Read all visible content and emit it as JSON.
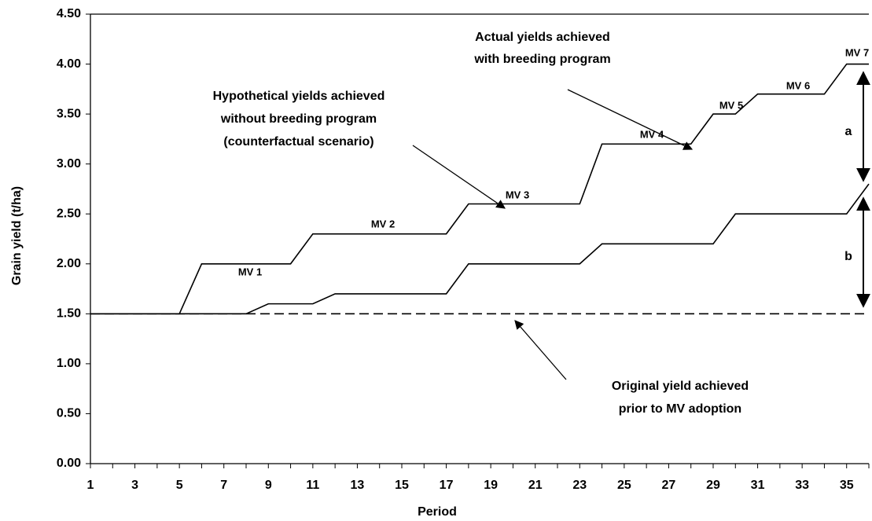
{
  "chart_data": {
    "type": "line",
    "y_label": "Grain yield (t/ha)",
    "x_label": "Period",
    "x": [
      1,
      2,
      3,
      4,
      5,
      6,
      7,
      8,
      9,
      10,
      11,
      12,
      13,
      14,
      15,
      16,
      17,
      18,
      19,
      20,
      21,
      22,
      23,
      24,
      25,
      26,
      27,
      28,
      29,
      30,
      31,
      32,
      33,
      34,
      35,
      36
    ],
    "series": [
      {
        "color": "#000000",
        "dash": false,
        "values": [
          1.5,
          1.5,
          1.5,
          1.5,
          1.5,
          2.0,
          2.0,
          2.0,
          2.0,
          2.0,
          2.3,
          2.3,
          2.3,
          2.3,
          2.3,
          2.3,
          2.3,
          2.6,
          2.6,
          2.6,
          2.6,
          2.6,
          2.6,
          3.2,
          3.2,
          3.2,
          3.2,
          3.2,
          3.5,
          3.5,
          3.7,
          3.7,
          3.7,
          3.7,
          4.0,
          4.0
        ]
      },
      {
        "color": "#000000",
        "dash": false,
        "values": [
          1.5,
          1.5,
          1.5,
          1.5,
          1.5,
          1.5,
          1.5,
          1.5,
          1.6,
          1.6,
          1.6,
          1.7,
          1.7,
          1.7,
          1.7,
          1.7,
          1.7,
          2.0,
          2.0,
          2.0,
          2.0,
          2.0,
          2.0,
          2.2,
          2.2,
          2.2,
          2.2,
          2.2,
          2.2,
          2.5,
          2.5,
          2.5,
          2.5,
          2.5,
          2.5,
          2.8
        ]
      },
      {
        "color": "#000000",
        "dash": true,
        "values": [
          1.5,
          1.5,
          1.5,
          1.5,
          1.5,
          1.5,
          1.5,
          1.5,
          1.5,
          1.5,
          1.5,
          1.5,
          1.5,
          1.5,
          1.5,
          1.5,
          1.5,
          1.5,
          1.5,
          1.5,
          1.5,
          1.5,
          1.5,
          1.5,
          1.5,
          1.5,
          1.5,
          1.5,
          1.5,
          1.5,
          1.5,
          1.5,
          1.5,
          1.5,
          1.5,
          1.5
        ]
      }
    ],
    "xlim": [
      1,
      36
    ],
    "xticks": [
      1,
      3,
      5,
      7,
      9,
      11,
      13,
      15,
      17,
      19,
      21,
      23,
      25,
      27,
      29,
      31,
      33,
      35
    ],
    "ylim": [
      0,
      4.5
    ],
    "yticks": [
      {
        "value": 0,
        "label": "0.00"
      },
      {
        "value": 0.5,
        "label": "0.50"
      },
      {
        "value": 1,
        "label": "1.00"
      },
      {
        "value": 1.5,
        "label": "1.50"
      },
      {
        "value": 2,
        "label": "2.00"
      },
      {
        "value": 2.5,
        "label": "2.50"
      },
      {
        "value": 3,
        "label": "3.00"
      },
      {
        "value": 3.5,
        "label": "3.50"
      },
      {
        "value": 4,
        "label": "4.00"
      },
      {
        "value": 4.5,
        "label": "4.50"
      }
    ],
    "grid": false,
    "annotations": {
      "actual": [
        "Actual yields achieved",
        "with breeding program"
      ],
      "hypothetical": [
        "Hypothetical yields achieved",
        "without breeding program",
        "(counterfactual scenario)"
      ],
      "original": [
        "Original yield achieved",
        "prior to MV adoption"
      ],
      "varieties": [
        "MV 1",
        "MV 2",
        "MV 3",
        "MV 4",
        "MV 5",
        "MV 6",
        "MV 7"
      ],
      "gap_a": "a",
      "gap_b": "b"
    }
  }
}
